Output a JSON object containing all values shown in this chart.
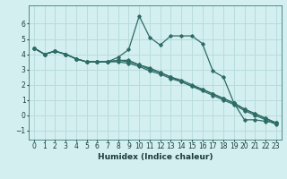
{
  "xlabel": "Humidex (Indice chaleur)",
  "bg_color": "#d4efef",
  "grid_color": "#b8dcdc",
  "line_color": "#2d6b65",
  "xlim": [
    -0.5,
    23.5
  ],
  "ylim": [
    -1.6,
    7.2
  ],
  "xticks": [
    0,
    1,
    2,
    3,
    4,
    5,
    6,
    7,
    8,
    9,
    10,
    11,
    12,
    13,
    14,
    15,
    16,
    17,
    18,
    19,
    20,
    21,
    22,
    23
  ],
  "yticks": [
    -1,
    0,
    1,
    2,
    3,
    4,
    5,
    6
  ],
  "lines": [
    [
      4.4,
      4.0,
      4.2,
      4.0,
      3.7,
      3.5,
      3.5,
      3.5,
      3.8,
      4.3,
      6.5,
      5.1,
      4.6,
      5.2,
      5.2,
      5.2,
      4.7,
      2.9,
      2.5,
      0.8,
      -0.3,
      -0.3,
      -0.4,
      -0.5
    ],
    [
      4.4,
      4.0,
      4.2,
      4.0,
      3.7,
      3.5,
      3.5,
      3.5,
      3.6,
      3.6,
      3.3,
      3.1,
      2.8,
      2.5,
      2.3,
      2.0,
      1.7,
      1.4,
      1.1,
      0.8,
      0.4,
      0.1,
      -0.2,
      -0.5
    ],
    [
      4.4,
      4.0,
      4.2,
      4.0,
      3.7,
      3.5,
      3.5,
      3.5,
      3.6,
      3.5,
      3.3,
      3.0,
      2.8,
      2.5,
      2.2,
      1.9,
      1.7,
      1.4,
      1.1,
      0.8,
      0.4,
      0.1,
      -0.2,
      -0.5
    ],
    [
      4.4,
      4.0,
      4.2,
      4.0,
      3.7,
      3.5,
      3.5,
      3.5,
      3.5,
      3.4,
      3.2,
      2.9,
      2.7,
      2.4,
      2.2,
      1.9,
      1.6,
      1.3,
      1.0,
      0.7,
      0.3,
      0.0,
      -0.3,
      -0.6
    ]
  ],
  "tick_fontsize": 5.5,
  "xlabel_fontsize": 6.5
}
